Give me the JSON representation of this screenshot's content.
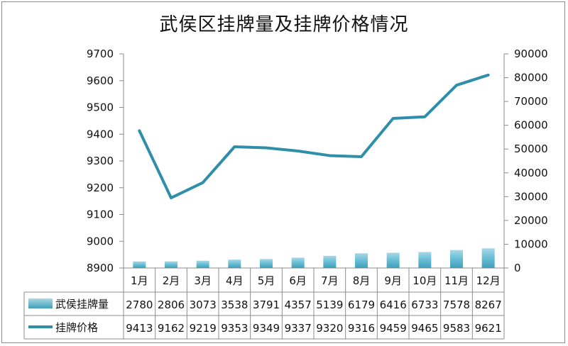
{
  "chart_data": {
    "type": "bar",
    "title": "武侯区挂牌量及挂牌价格情况",
    "categories": [
      "1月",
      "2月",
      "3月",
      "4月",
      "5月",
      "6月",
      "7月",
      "8月",
      "9月",
      "10月",
      "11月",
      "12月"
    ],
    "series": [
      {
        "name": "武侯挂牌量",
        "type": "bar",
        "axis": "right",
        "values": [
          2780,
          2806,
          3073,
          3538,
          3791,
          4357,
          5139,
          6179,
          6416,
          6733,
          7578,
          8267
        ]
      },
      {
        "name": "挂牌价格",
        "type": "line",
        "axis": "left",
        "values": [
          9413,
          9162,
          9219,
          9353,
          9349,
          9337,
          9320,
          9316,
          9459,
          9465,
          9583,
          9621
        ]
      }
    ],
    "y_left": {
      "min": 8900,
      "max": 9700,
      "ticks": [
        8900,
        9000,
        9100,
        9200,
        9300,
        9400,
        9500,
        9600,
        9700
      ]
    },
    "y_right": {
      "min": 0,
      "max": 90000,
      "ticks": [
        0,
        10000,
        20000,
        30000,
        40000,
        50000,
        60000,
        70000,
        80000,
        90000
      ]
    },
    "grid": false,
    "legend": "data-table",
    "colors": {
      "bar": "#4bacc6",
      "bar_light": "#a9d8e6",
      "line": "#2f8fa8",
      "axis": "#8c8c8c"
    }
  }
}
